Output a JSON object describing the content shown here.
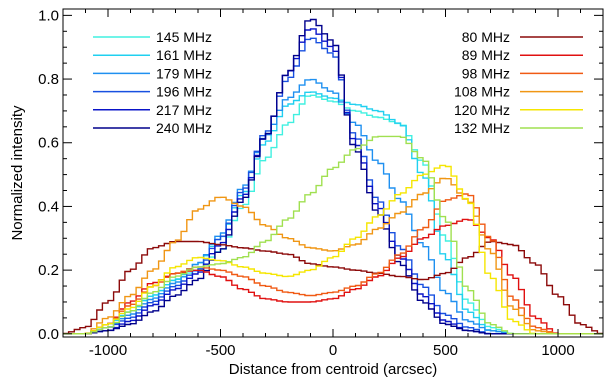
{
  "chart_data": {
    "type": "line",
    "xlabel": "Distance from centroid (arcsec)",
    "ylabel": "Normalized intensity",
    "xlim": [
      -1200,
      1200
    ],
    "ylim": [
      -0.01,
      1.02
    ],
    "x_ticks": [
      "-1000",
      "-500",
      "0",
      "500",
      "1000"
    ],
    "x_tick_values": [
      -1000,
      -500,
      0,
      500,
      1000
    ],
    "y_ticks": [
      "0.0",
      "0.2",
      "0.4",
      "0.6",
      "0.8",
      "1.0"
    ],
    "y_tick_values": [
      0.0,
      0.2,
      0.4,
      0.6,
      0.8,
      1.0
    ],
    "grid": false,
    "legend_left_placement": "top-left",
    "legend_right_placement": "top-right",
    "step": true,
    "x": [
      -1200,
      -1100,
      -1000,
      -900,
      -800,
      -700,
      -600,
      -500,
      -400,
      -300,
      -200,
      -100,
      0,
      100,
      200,
      300,
      400,
      500,
      600,
      700,
      800,
      900,
      1000,
      1100,
      1200
    ],
    "series": [
      {
        "name": "145 MHz",
        "color": "#40f0e0",
        "legend": "left",
        "values": [
          0.0,
          0.0,
          0.03,
          0.07,
          0.12,
          0.17,
          0.2,
          0.26,
          0.4,
          0.55,
          0.66,
          0.75,
          0.73,
          0.7,
          0.68,
          0.66,
          0.54,
          0.3,
          0.1,
          0.02,
          0.0,
          0.0,
          0.0,
          0.0,
          0.0
        ]
      },
      {
        "name": "161 MHz",
        "color": "#20d0f0",
        "legend": "left",
        "values": [
          0.0,
          0.0,
          0.03,
          0.07,
          0.12,
          0.17,
          0.22,
          0.3,
          0.44,
          0.6,
          0.72,
          0.76,
          0.74,
          0.72,
          0.7,
          0.66,
          0.5,
          0.24,
          0.07,
          0.01,
          0.0,
          0.0,
          0.0,
          0.0,
          0.0
        ]
      },
      {
        "name": "179 MHz",
        "color": "#1f90f0",
        "legend": "left",
        "values": [
          0.0,
          0.0,
          0.02,
          0.06,
          0.11,
          0.16,
          0.22,
          0.31,
          0.46,
          0.62,
          0.74,
          0.8,
          0.76,
          0.66,
          0.54,
          0.42,
          0.28,
          0.13,
          0.04,
          0.01,
          0.0,
          0.0,
          0.0,
          0.0,
          0.0
        ]
      },
      {
        "name": "196 MHz",
        "color": "#1850e0",
        "legend": "left",
        "values": [
          0.0,
          0.0,
          0.02,
          0.05,
          0.1,
          0.15,
          0.2,
          0.3,
          0.45,
          0.63,
          0.8,
          0.93,
          0.88,
          0.62,
          0.42,
          0.27,
          0.15,
          0.06,
          0.02,
          0.0,
          0.0,
          0.0,
          0.0,
          0.0,
          0.0
        ]
      },
      {
        "name": "217 MHz",
        "color": "#0a14c8",
        "legend": "left",
        "values": [
          0.0,
          0.0,
          0.01,
          0.04,
          0.09,
          0.14,
          0.19,
          0.28,
          0.43,
          0.62,
          0.82,
          0.96,
          0.9,
          0.6,
          0.4,
          0.24,
          0.12,
          0.04,
          0.01,
          0.0,
          0.0,
          0.0,
          0.0,
          0.0,
          0.0
        ]
      },
      {
        "name": "240 MHz",
        "color": "#00008c",
        "legend": "left",
        "values": [
          0.0,
          0.0,
          0.01,
          0.03,
          0.07,
          0.12,
          0.17,
          0.26,
          0.42,
          0.62,
          0.82,
          0.99,
          0.92,
          0.58,
          0.38,
          0.22,
          0.1,
          0.03,
          0.01,
          0.0,
          0.0,
          0.0,
          0.0,
          0.0,
          0.0
        ]
      },
      {
        "name": "80 MHz",
        "color": "#8c0a0a",
        "legend": "right",
        "values": [
          0.0,
          0.02,
          0.1,
          0.2,
          0.27,
          0.29,
          0.29,
          0.28,
          0.27,
          0.26,
          0.25,
          0.22,
          0.21,
          0.2,
          0.19,
          0.18,
          0.17,
          0.19,
          0.24,
          0.29,
          0.28,
          0.22,
          0.12,
          0.03,
          0.0
        ]
      },
      {
        "name": "89 MHz",
        "color": "#e01010",
        "legend": "right",
        "values": [
          0.0,
          0.0,
          0.03,
          0.1,
          0.16,
          0.19,
          0.2,
          0.18,
          0.14,
          0.11,
          0.1,
          0.1,
          0.11,
          0.14,
          0.18,
          0.24,
          0.3,
          0.34,
          0.36,
          0.3,
          0.18,
          0.05,
          0.0,
          0.0,
          0.0
        ]
      },
      {
        "name": "98 MHz",
        "color": "#f05a14",
        "legend": "right",
        "values": [
          0.0,
          0.0,
          0.03,
          0.09,
          0.15,
          0.19,
          0.21,
          0.2,
          0.18,
          0.15,
          0.13,
          0.12,
          0.13,
          0.15,
          0.19,
          0.25,
          0.33,
          0.42,
          0.44,
          0.3,
          0.11,
          0.02,
          0.0,
          0.0,
          0.0
        ]
      },
      {
        "name": "108 MHz",
        "color": "#f09614",
        "legend": "right",
        "values": [
          0.0,
          0.0,
          0.05,
          0.12,
          0.2,
          0.29,
          0.39,
          0.43,
          0.4,
          0.34,
          0.3,
          0.27,
          0.26,
          0.28,
          0.33,
          0.38,
          0.44,
          0.49,
          0.42,
          0.26,
          0.08,
          0.01,
          0.0,
          0.0,
          0.0
        ]
      },
      {
        "name": "120 MHz",
        "color": "#f5e600",
        "legend": "right",
        "values": [
          0.0,
          0.0,
          0.03,
          0.08,
          0.15,
          0.21,
          0.24,
          0.23,
          0.21,
          0.19,
          0.18,
          0.2,
          0.24,
          0.3,
          0.37,
          0.44,
          0.5,
          0.53,
          0.42,
          0.18,
          0.04,
          0.0,
          0.0,
          0.0,
          0.0
        ]
      },
      {
        "name": "132 MHz",
        "color": "#a0e050",
        "legend": "right",
        "values": [
          0.0,
          0.0,
          0.02,
          0.07,
          0.13,
          0.18,
          0.21,
          0.22,
          0.24,
          0.29,
          0.36,
          0.44,
          0.52,
          0.58,
          0.62,
          0.62,
          0.55,
          0.36,
          0.14,
          0.03,
          0.0,
          0.0,
          0.0,
          0.0,
          0.0
        ]
      }
    ]
  }
}
